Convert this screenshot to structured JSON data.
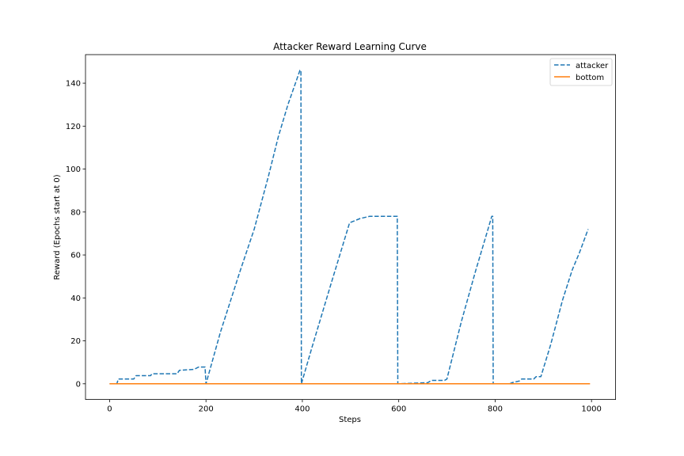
{
  "chart_data": {
    "type": "line",
    "title": "Attacker Reward Learning Curve",
    "xlabel": "Steps",
    "ylabel": "Reward (Epochs start at 0)",
    "xlim": [
      -50,
      1050
    ],
    "ylim": [
      -7.3,
      153.3
    ],
    "xticks": [
      0,
      200,
      400,
      600,
      800,
      1000
    ],
    "yticks": [
      0,
      20,
      40,
      60,
      80,
      100,
      120,
      140
    ],
    "grid": false,
    "legend_position": "top-right",
    "series": [
      {
        "name": "attacker",
        "color": "#1f77b4",
        "style": "dashed",
        "points": [
          [
            0,
            0
          ],
          [
            15,
            0
          ],
          [
            18,
            2.2
          ],
          [
            50,
            2.2
          ],
          [
            55,
            3.8
          ],
          [
            85,
            3.8
          ],
          [
            88,
            4.7
          ],
          [
            140,
            4.7
          ],
          [
            145,
            6.3
          ],
          [
            175,
            6.7
          ],
          [
            185,
            7.8
          ],
          [
            198,
            7.8
          ],
          [
            200,
            0
          ],
          [
            230,
            24
          ],
          [
            270,
            52
          ],
          [
            300,
            72
          ],
          [
            330,
            97
          ],
          [
            350,
            115
          ],
          [
            370,
            130
          ],
          [
            395,
            146
          ],
          [
            397,
            146
          ],
          [
            398,
            0
          ],
          [
            420,
            17
          ],
          [
            460,
            47
          ],
          [
            498,
            75
          ],
          [
            520,
            77
          ],
          [
            540,
            78
          ],
          [
            560,
            78
          ],
          [
            595,
            78
          ],
          [
            597,
            78
          ],
          [
            598,
            0
          ],
          [
            660,
            0.5
          ],
          [
            668,
            1.6
          ],
          [
            695,
            1.6
          ],
          [
            700,
            2.2
          ],
          [
            730,
            29
          ],
          [
            760,
            53
          ],
          [
            780,
            68
          ],
          [
            793,
            78
          ],
          [
            795,
            78
          ],
          [
            796,
            0
          ],
          [
            830,
            0
          ],
          [
            835,
            0.5
          ],
          [
            850,
            1.3
          ],
          [
            855,
            2.2
          ],
          [
            880,
            2.2
          ],
          [
            885,
            3.3
          ],
          [
            895,
            3.3
          ],
          [
            915,
            18
          ],
          [
            940,
            39
          ],
          [
            960,
            53
          ],
          [
            975,
            61
          ],
          [
            993,
            72
          ]
        ]
      },
      {
        "name": "bottom",
        "color": "#ff7f0e",
        "style": "solid",
        "points": [
          [
            0,
            0
          ],
          [
            997,
            0
          ]
        ]
      }
    ]
  }
}
